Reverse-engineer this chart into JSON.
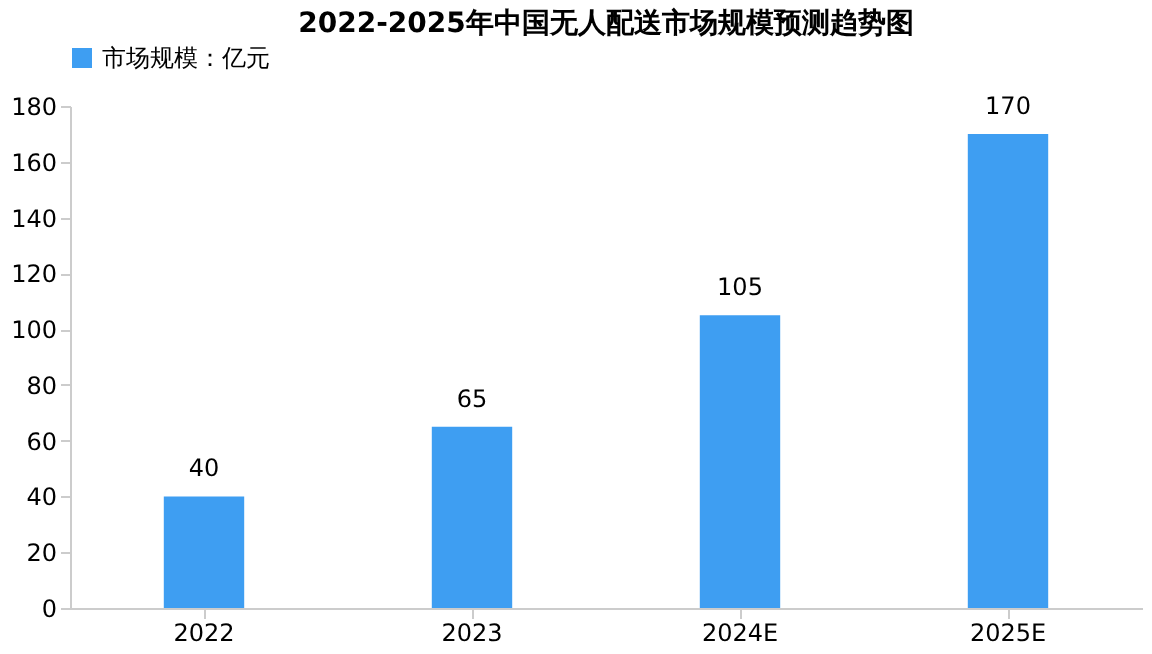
{
  "chart_data": {
    "type": "bar",
    "title": "2022-2025年中国无人配送市场规模预测趋势图",
    "categories": [
      "2022",
      "2023",
      "2024E",
      "2025E"
    ],
    "series": [
      {
        "name": "市场规模：亿元",
        "color": "#3e9ef2",
        "values": [
          40,
          65,
          105,
          170
        ]
      }
    ],
    "ylim": [
      0,
      180
    ],
    "yticks": [
      0,
      20,
      40,
      60,
      80,
      100,
      120,
      140,
      160,
      180
    ],
    "data_labels": true,
    "legend": "top",
    "grid": false
  }
}
